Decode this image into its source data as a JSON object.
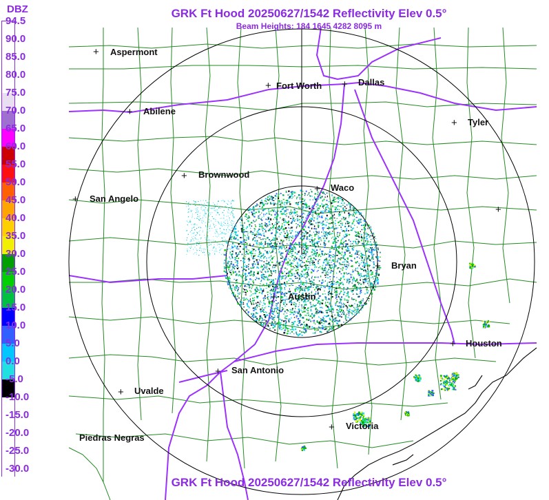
{
  "header": {
    "title": "GRK Ft Hood 20250627/1542 Reflectivity Elev 0.5°",
    "beam_heights": "Beam Heights: 184 1645 4282 8095 m"
  },
  "legend": {
    "unit": "DBZ",
    "labels": [
      "94.5",
      "90.0",
      "85.0",
      "80.0",
      "75.0",
      "70.0",
      "65.0",
      "60.0",
      "55.0",
      "50.0",
      "45.0",
      "40.0",
      "35.0",
      "30.0",
      "25.0",
      "20.0",
      "15.0",
      "10.0",
      "5.0",
      "0.0",
      "-5.0",
      "-10.0",
      "-15.0",
      "-20.0",
      "-25.0",
      "-30.0"
    ],
    "colors": [
      "#ffffff",
      "#ffffff",
      "#ffffff",
      "#ffffff",
      "#e8e0f0",
      "#a070d0",
      "#ff00ff",
      "#cc0000",
      "#ff1010",
      "#ff6000",
      "#ffa500",
      "#ffd000",
      "#f0f000",
      "#00a000",
      "#00d000",
      "#00c040",
      "#0000ff",
      "#3060ff",
      "#00c8ff",
      "#20e0e0",
      "#000000",
      "#ffffff",
      "#ffffff",
      "#ffffff",
      "#ffffff",
      "#ffffff"
    ]
  },
  "cities": [
    {
      "name": "Aspermont"
    },
    {
      "name": "Fort Worth"
    },
    {
      "name": "Dallas"
    },
    {
      "name": "Abilene"
    },
    {
      "name": "Tyler"
    },
    {
      "name": "Brownwood"
    },
    {
      "name": "Waco"
    },
    {
      "name": "San Angelo"
    },
    {
      "name": "Bryan"
    },
    {
      "name": "Austin"
    },
    {
      "name": "Houston"
    },
    {
      "name": "San Antonio"
    },
    {
      "name": "Uvalde"
    },
    {
      "name": "Victoria"
    },
    {
      "name": "Piedras Negras"
    }
  ],
  "footer": {
    "title": "GRK Ft Hood 20250627/1542 Reflectivity Elev 0.5°"
  },
  "colors": {
    "accent": "#8a2be2",
    "county_lines": "#228b22",
    "highways": "#9b30ff",
    "range_rings": "#000000"
  }
}
